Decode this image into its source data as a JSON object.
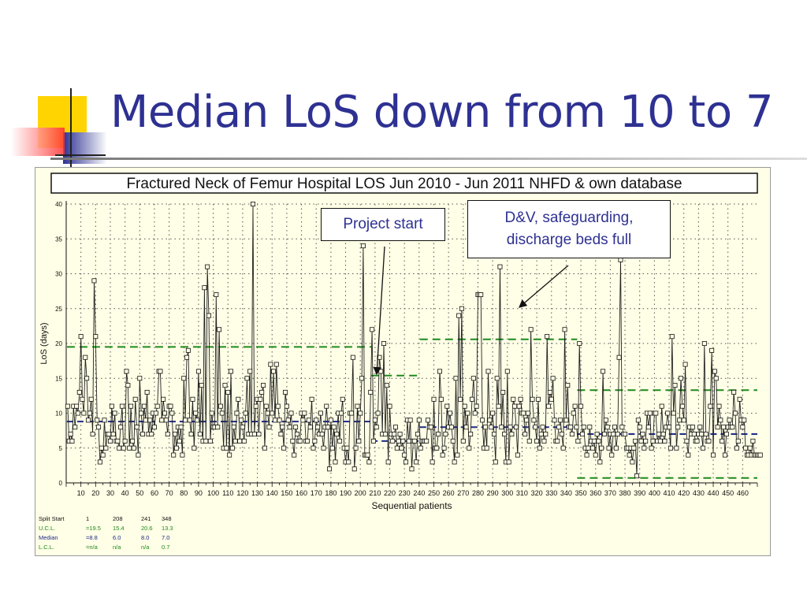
{
  "slide": {
    "title": "Median LoS down from 10 to 7"
  },
  "chart_data": {
    "type": "line",
    "title": "Fractured Neck of Femur Hospital LOS Jun 2010 - Jun 2011 NHFD & own database",
    "xlabel": "Sequential patients",
    "ylabel": "LoS (days)",
    "xlim": [
      0,
      470
    ],
    "ylim": [
      0,
      40
    ],
    "x_ticks": [
      10,
      20,
      30,
      40,
      50,
      60,
      70,
      80,
      90,
      100,
      110,
      120,
      130,
      140,
      150,
      160,
      170,
      180,
      190,
      200,
      210,
      220,
      230,
      240,
      250,
      260,
      270,
      280,
      290,
      300,
      310,
      320,
      330,
      340,
      350,
      360,
      370,
      380,
      390,
      400,
      410,
      420,
      430,
      440,
      450,
      460
    ],
    "y_ticks": [
      0,
      5,
      10,
      15,
      20,
      25,
      30,
      35,
      40
    ],
    "grid": true,
    "colors": {
      "line": "#222222",
      "ucl": "#1e8a1e",
      "median": "#1e2a8a"
    },
    "series": [
      {
        "name": "LoS",
        "values": [
          11,
          6,
          7,
          6,
          11,
          8,
          11,
          10,
          13,
          21,
          12,
          10,
          18,
          15,
          9,
          10,
          12,
          7,
          29,
          21,
          9,
          8,
          3,
          5,
          4,
          9,
          5,
          7,
          7,
          6,
          11,
          7,
          10,
          6,
          6,
          5,
          8,
          11,
          5,
          6,
          16,
          14,
          5,
          11,
          6,
          5,
          12,
          8,
          4,
          15,
          10,
          7,
          11,
          9,
          13,
          7,
          9,
          7,
          10,
          8,
          10,
          11,
          16,
          16,
          9,
          12,
          10,
          9,
          7,
          11,
          11,
          10,
          4,
          7,
          5,
          8,
          6,
          8,
          4,
          15,
          9,
          18,
          19,
          9,
          7,
          12,
          5,
          10,
          9,
          16,
          7,
          14,
          6,
          28,
          6,
          31,
          24,
          6,
          10,
          8,
          8,
          27,
          8,
          22,
          11,
          10,
          5,
          14,
          5,
          13,
          4,
          16,
          5,
          8,
          6,
          10,
          12,
          6,
          9,
          8,
          6,
          10,
          15,
          7,
          16,
          7,
          40,
          7,
          11,
          12,
          7,
          12,
          13,
          14,
          5,
          11,
          10,
          8,
          17,
          10,
          16,
          9,
          17,
          11,
          9,
          7,
          8,
          5,
          13,
          11,
          9,
          8,
          10,
          6,
          4,
          8,
          7,
          6,
          6,
          10,
          9,
          10,
          6,
          6,
          9,
          8,
          12,
          5,
          6,
          9,
          8,
          7,
          10,
          7,
          5,
          8,
          11,
          8,
          2,
          9,
          5,
          8,
          3,
          7,
          10,
          6,
          10,
          12,
          5,
          3,
          5,
          3,
          10,
          10,
          18,
          2,
          5,
          11,
          6,
          10,
          15,
          34,
          4,
          4,
          4,
          3,
          13,
          22,
          6,
          9,
          8,
          10,
          18,
          16,
          7,
          20,
          7,
          14,
          3,
          11,
          7,
          6,
          7,
          8,
          5,
          6,
          7,
          5,
          6,
          4,
          3,
          9,
          6,
          9,
          2,
          6,
          6,
          3,
          7,
          9,
          5,
          6,
          6,
          6,
          6,
          9,
          8,
          8,
          3,
          12,
          5,
          5,
          7,
          16,
          12,
          4,
          5,
          7,
          11,
          8,
          10,
          8,
          6,
          3,
          15,
          4,
          24,
          12,
          25,
          6,
          11,
          8,
          10,
          5,
          7,
          12,
          15,
          10,
          11,
          27,
          27,
          27,
          9,
          5,
          8,
          5,
          16,
          9,
          8,
          10,
          7,
          3,
          15,
          11,
          31,
          8,
          13,
          7,
          3,
          16,
          3,
          8,
          7,
          12,
          11,
          8,
          4,
          11,
          12,
          10,
          10,
          7,
          9,
          10,
          6,
          22,
          12,
          9,
          8,
          6,
          12,
          5,
          7,
          8,
          6,
          7,
          21,
          11,
          13,
          12,
          15,
          9,
          6,
          6,
          8,
          9,
          7,
          5,
          22,
          9,
          14,
          8,
          8,
          7,
          10,
          11,
          8,
          6,
          20,
          11,
          7,
          8,
          5,
          4,
          5,
          8,
          6,
          5,
          6,
          4,
          7,
          6,
          3,
          5,
          16,
          7,
          9,
          8,
          5,
          7,
          4,
          7,
          8,
          5,
          7,
          18,
          32,
          8,
          7,
          7,
          5,
          5,
          4,
          5,
          3,
          5,
          6,
          1,
          9,
          8,
          6,
          7,
          5,
          6,
          10,
          8,
          10,
          5,
          6,
          10,
          10,
          6,
          7,
          6,
          11,
          7,
          6,
          8,
          10,
          8,
          5,
          21,
          10,
          14,
          5,
          8,
          9,
          15,
          11,
          9,
          17,
          6,
          4,
          8,
          7,
          8,
          7,
          6,
          6,
          7,
          8,
          7,
          5,
          20,
          7,
          6,
          6,
          11,
          19,
          4,
          16,
          15,
          8,
          11,
          9,
          6,
          8,
          4,
          7,
          8,
          9,
          8,
          8,
          13,
          10,
          5,
          6,
          12,
          9,
          8,
          9,
          5,
          4,
          4,
          5,
          4,
          6,
          4,
          4,
          4,
          4,
          4
        ]
      }
    ],
    "phases": [
      {
        "start": 1,
        "end": 207,
        "ucl": 19.5,
        "median": 8.8
      },
      {
        "start": 208,
        "end": 240,
        "ucl": 15.4,
        "median": 6.0
      },
      {
        "start": 241,
        "end": 347,
        "ucl": 20.6,
        "median": 8.0
      },
      {
        "start": 348,
        "end": 470,
        "ucl": 13.3,
        "median": 7.0,
        "lcl": 0.7
      }
    ],
    "annotations": [
      {
        "text": "Project start"
      },
      {
        "text": "D&V, safeguarding, discharge beds full"
      }
    ],
    "stats_table": {
      "row_labels": [
        "Split Start",
        "U.C.L.",
        "Median",
        "L.C.L."
      ],
      "columns": [
        [
          "1",
          "=19.5",
          "=8.8",
          "=n/a"
        ],
        [
          "208",
          "15.4",
          "6.0",
          "n/a"
        ],
        [
          "241",
          "20.6",
          "8.0",
          "n/a"
        ],
        [
          "348",
          "13.3",
          "7.0",
          "0.7"
        ]
      ]
    }
  }
}
